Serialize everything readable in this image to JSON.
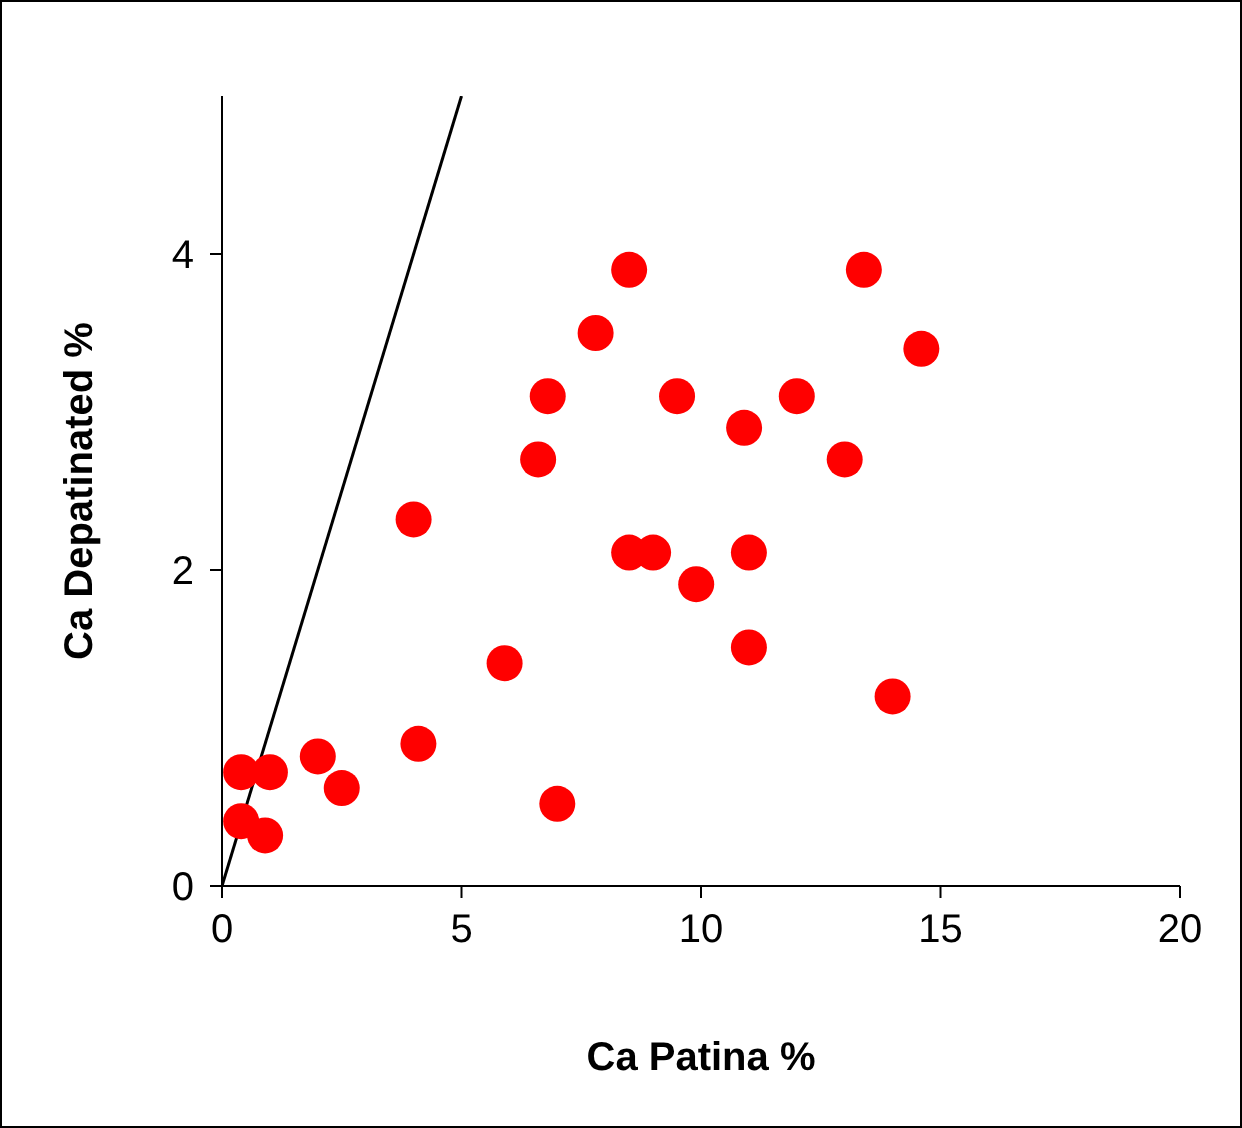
{
  "chart_data": {
    "type": "scatter",
    "xlabel": "Ca Patina %",
    "ylabel": "Ca Depatinated %",
    "xlim": [
      0,
      20
    ],
    "xticks": [
      0,
      5,
      10,
      15,
      20
    ],
    "ylim": [
      0,
      5
    ],
    "yticks": [
      0,
      2,
      4
    ],
    "grid": false,
    "legend": false,
    "series": [
      {
        "color": "#ff0000",
        "marker": "circle",
        "x": [
          0.4,
          1.0,
          0.4,
          0.9,
          2.0,
          2.5,
          4.0,
          4.1,
          5.9,
          7.0,
          6.6,
          6.8,
          7.8,
          8.5,
          8.5,
          9.0,
          9.5,
          9.9,
          10.9,
          11.0,
          11.0,
          12.0,
          13.0,
          13.4,
          14.0,
          14.6
        ],
        "values": [
          0.72,
          0.72,
          0.41,
          0.32,
          0.82,
          0.62,
          2.32,
          0.9,
          1.41,
          0.52,
          2.7,
          3.1,
          3.5,
          3.9,
          2.11,
          2.11,
          3.1,
          1.91,
          2.9,
          2.11,
          1.51,
          3.1,
          2.7,
          3.9,
          1.2,
          3.4
        ]
      },
      {
        "type": "line",
        "color": "#000000",
        "marker": "none",
        "line_style": "solid",
        "x": [
          0,
          5
        ],
        "values": [
          0,
          5
        ]
      }
    ]
  }
}
